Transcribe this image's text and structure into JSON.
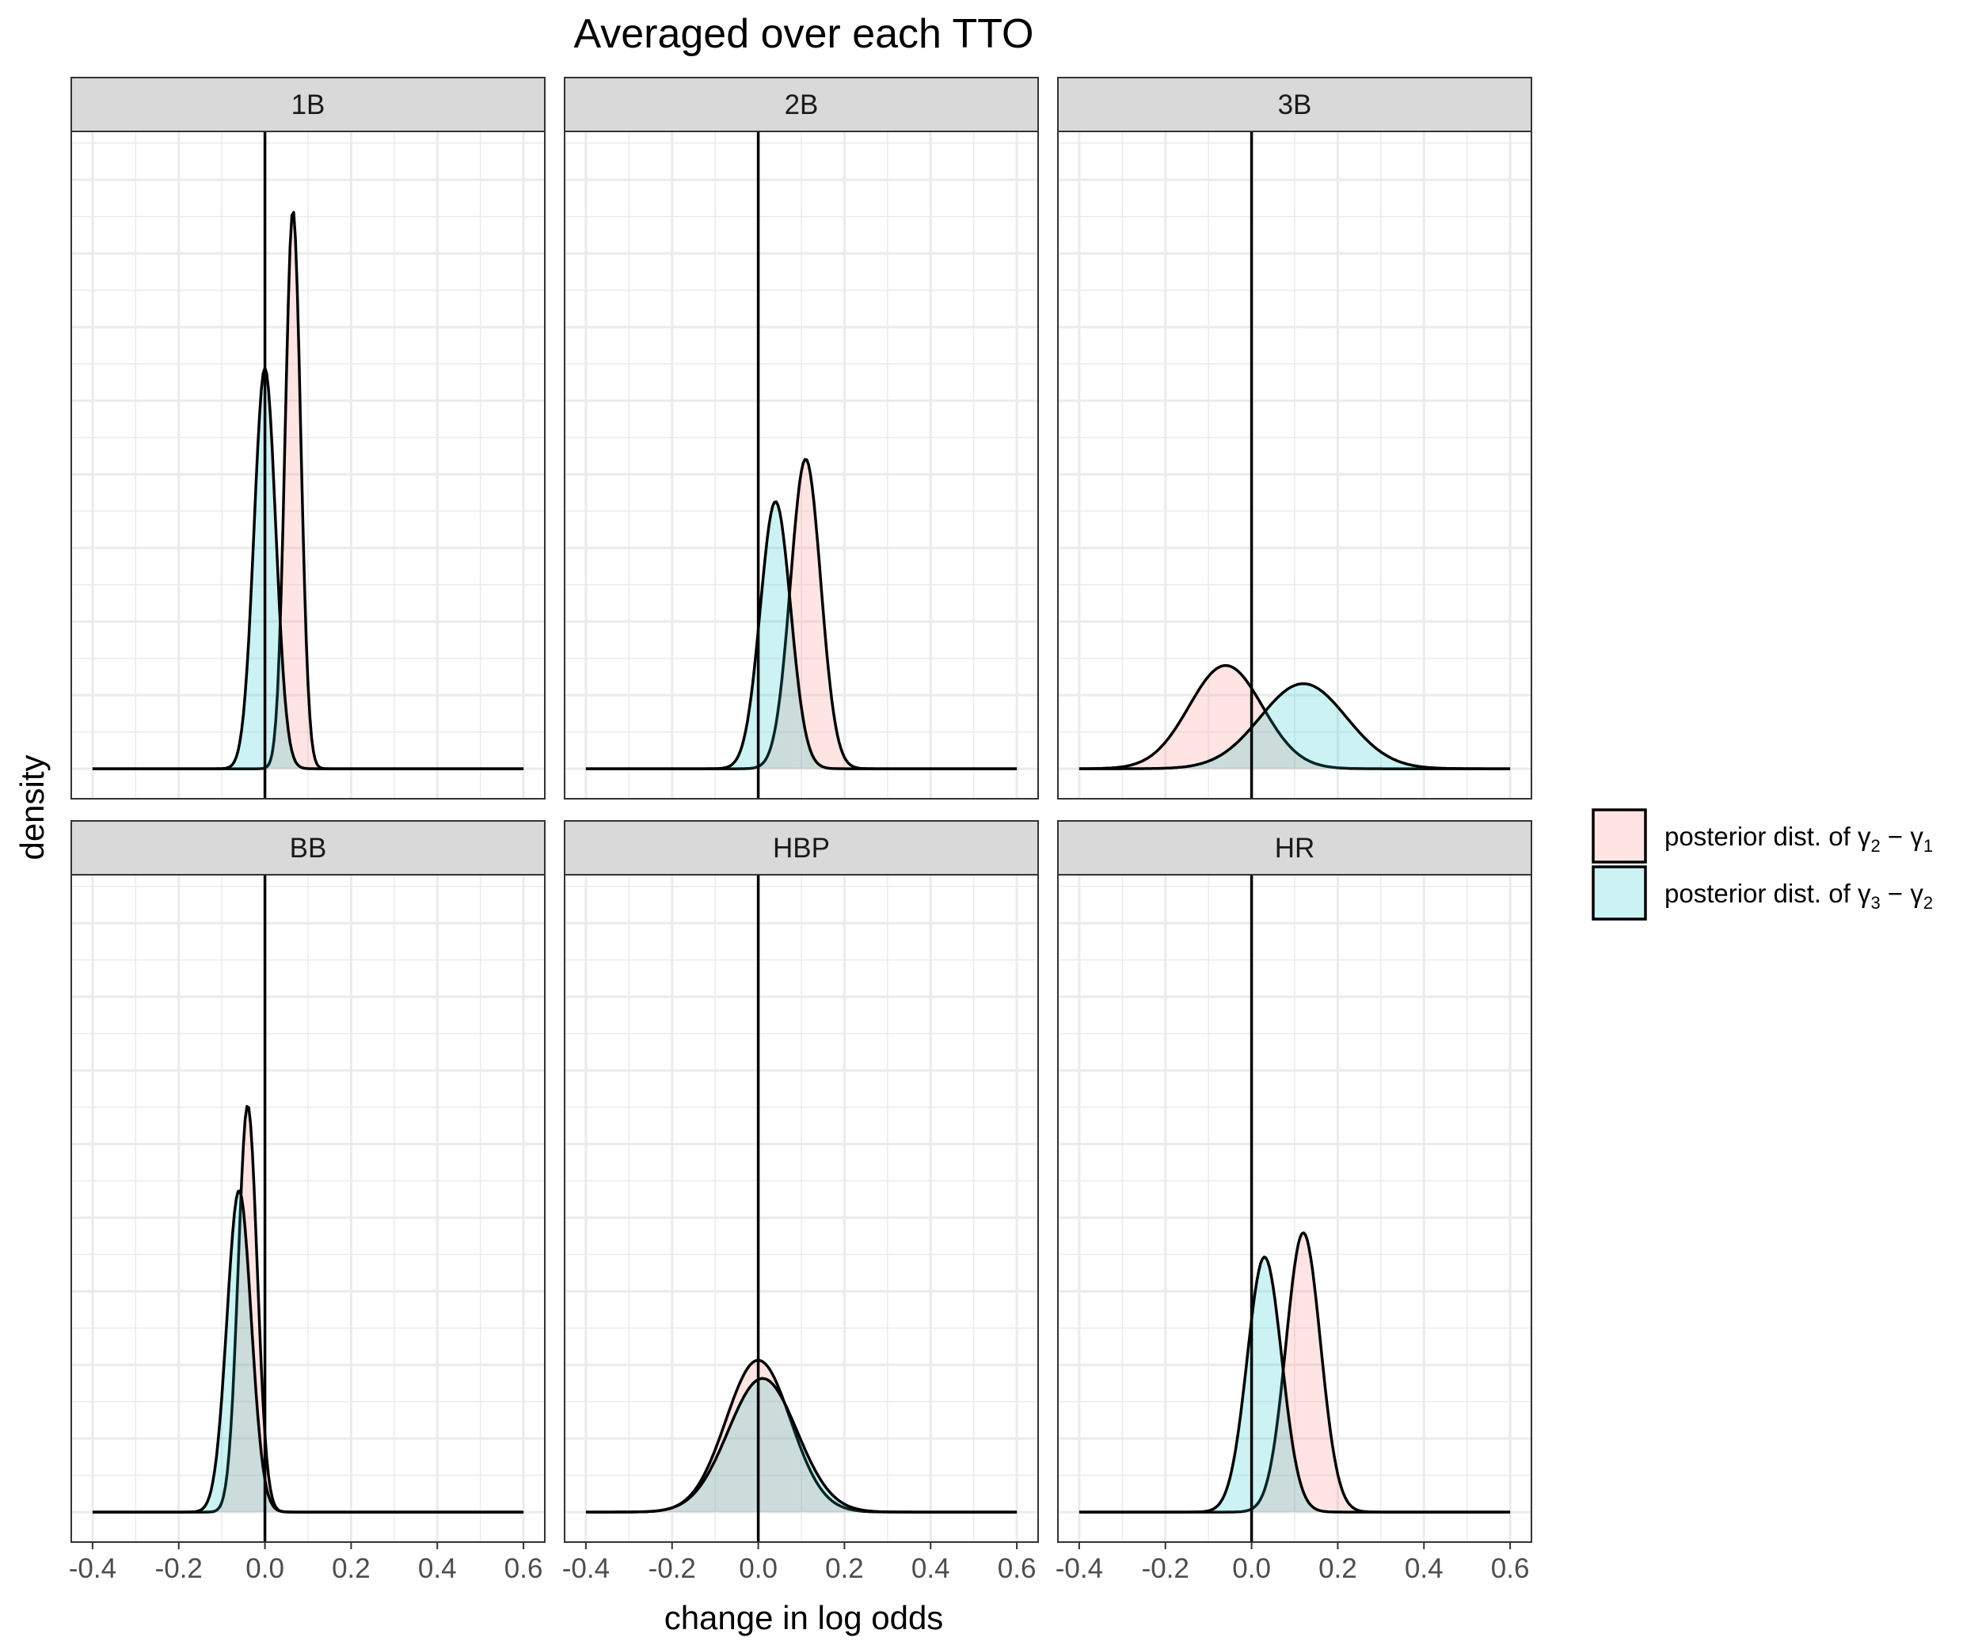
{
  "chart_data": {
    "type": "area",
    "title": "Averaged over each TTO",
    "xlabel": "change in log odds",
    "ylabel": "density",
    "xlim": [
      -0.4,
      0.6
    ],
    "x_ticks": [
      "-0.4",
      "-0.2",
      "0.0",
      "0.2",
      "0.4",
      "0.6"
    ],
    "y_tick_labels_shown": false,
    "grid": true,
    "vline_x": 0,
    "legend": {
      "placement": "right",
      "entries": [
        {
          "prefix": "posterior dist. of ",
          "math": "γ2 − γ1",
          "fill": "#f8766d"
        },
        {
          "prefix": "posterior dist. of ",
          "math": "γ3 − γ2",
          "fill": "#00bfc4"
        }
      ]
    },
    "facets": [
      {
        "label": "1B",
        "series": [
          {
            "key": "g2_minus_g1",
            "mean": 0.065,
            "sd": 0.018,
            "peak": 0.92
          },
          {
            "key": "g3_minus_g2",
            "mean": 0.0,
            "sd": 0.025,
            "peak": 0.66
          }
        ]
      },
      {
        "label": "2B",
        "series": [
          {
            "key": "g2_minus_g1",
            "mean": 0.11,
            "sd": 0.035,
            "peak": 0.51
          },
          {
            "key": "g3_minus_g2",
            "mean": 0.04,
            "sd": 0.035,
            "peak": 0.44
          }
        ]
      },
      {
        "label": "3B",
        "series": [
          {
            "key": "g2_minus_g1",
            "mean": -0.06,
            "sd": 0.085,
            "peak": 0.17
          },
          {
            "key": "g3_minus_g2",
            "mean": 0.12,
            "sd": 0.1,
            "peak": 0.14
          }
        ]
      },
      {
        "label": "BB",
        "series": [
          {
            "key": "g2_minus_g1",
            "mean": -0.04,
            "sd": 0.022,
            "peak": 0.67
          },
          {
            "key": "g3_minus_g2",
            "mean": -0.06,
            "sd": 0.028,
            "peak": 0.53
          }
        ]
      },
      {
        "label": "HBP",
        "series": [
          {
            "key": "g2_minus_g1",
            "mean": 0.0,
            "sd": 0.075,
            "peak": 0.25
          },
          {
            "key": "g3_minus_g2",
            "mean": 0.01,
            "sd": 0.08,
            "peak": 0.22
          }
        ]
      },
      {
        "label": "HR",
        "series": [
          {
            "key": "g2_minus_g1",
            "mean": 0.12,
            "sd": 0.04,
            "peak": 0.46
          },
          {
            "key": "g3_minus_g2",
            "mean": 0.03,
            "sd": 0.04,
            "peak": 0.42
          }
        ]
      }
    ]
  },
  "colors": {
    "g2_minus_g1": "#f8766d",
    "g3_minus_g2": "#00bfc4",
    "strip_bg": "#d9d9d9",
    "grid": "#ebebeb",
    "panel_border": "#333333"
  }
}
